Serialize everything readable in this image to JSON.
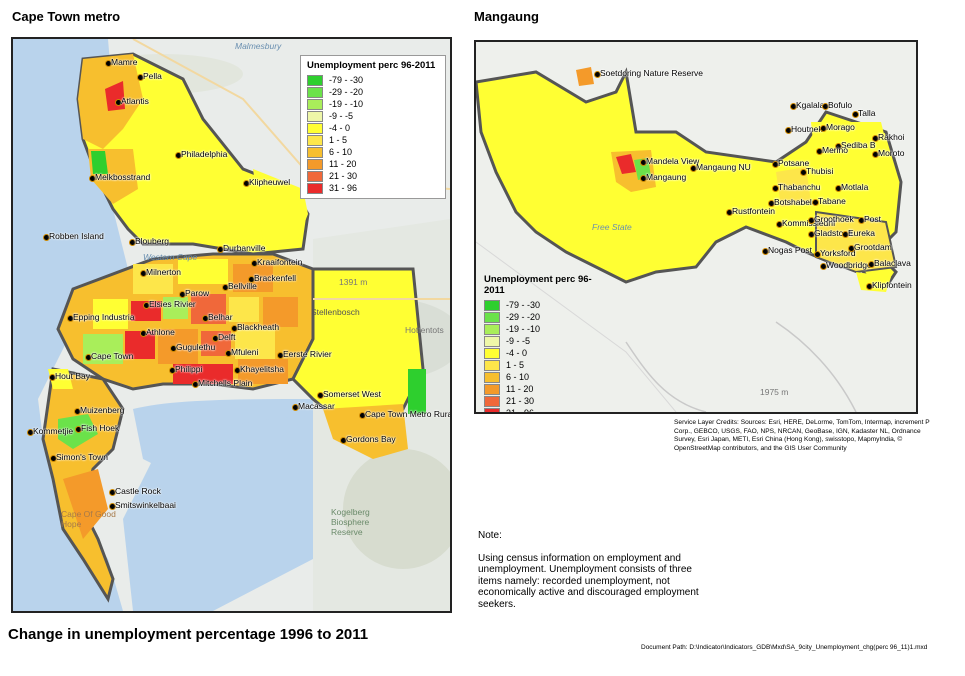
{
  "titles": {
    "left": "Cape Town metro",
    "right": "Mangaung",
    "main": "Change in unemployment percentage 1996 to 2011"
  },
  "legend": {
    "title": "Unemployment perc 96-2011",
    "classes": [
      {
        "label": "-79 - -30",
        "color": "#2ecf2e"
      },
      {
        "label": "-29 - -20",
        "color": "#6be24a"
      },
      {
        "label": "-19 - -10",
        "color": "#a9ee5a"
      },
      {
        "label": "-9 - -5",
        "color": "#eef7a8"
      },
      {
        "label": "-4 - 0",
        "color": "#ffff33"
      },
      {
        "label": "1 - 5",
        "color": "#fde64a"
      },
      {
        "label": "6 - 10",
        "color": "#f7bf2e"
      },
      {
        "label": "11 - 20",
        "color": "#f49a2a"
      },
      {
        "label": "21 - 30",
        "color": "#f0683a"
      },
      {
        "label": "31 - 96",
        "color": "#ea2b2b"
      }
    ]
  },
  "cape_town_places": [
    "Mamre",
    "Pella",
    "Atlantis",
    "Philadelphia",
    "Melkbosstrand",
    "Klipheuwel",
    "Robben Island",
    "Blouberg",
    "Durbanville",
    "Kraaifontein",
    "Milnerton",
    "Brackenfell",
    "Parow",
    "Bellville",
    "Elsies Rivier",
    "Epping Industria",
    "Belhar",
    "Blackheath",
    "Athlone",
    "Delft",
    "Gugulethu",
    "Mfuleni",
    "Eerste Rivier",
    "Cape Town",
    "Philippi",
    "Khayelitsha",
    "Hout Bay",
    "Mitchells Plain",
    "Macassar",
    "Somerset West",
    "Muizenberg",
    "Cape Town Metro Rural",
    "Kommetjie",
    "Fish Hoek",
    "Gordons Bay",
    "Simon's Town",
    "Castle Rock",
    "Smitswinkelbaai"
  ],
  "cape_town_map_labels": [
    "Malmesbury",
    "Western Cape",
    "Stellenbosch",
    "1391 m",
    "Hottentots",
    "Kogelberg Biosphere Reserve",
    "Cape Of Good Hope"
  ],
  "mangaung_places": [
    "Soetdoring Nature Reserve",
    "Kgalala",
    "Bofulo",
    "Talla",
    "Houtnek",
    "Morago",
    "Rakhoi",
    "Sediba B",
    "Merino",
    "Moroto",
    "Mandela View",
    "Mangaung NU",
    "Mangaung",
    "Potsane",
    "Thubisi",
    "Motlala",
    "Thabanchu",
    "Botshabelo",
    "Tabane",
    "Rustfontein",
    "Kommissiedrif",
    "Groothoek",
    "Post",
    "Gladstone",
    "Eureka",
    "Nogas Post",
    "Yorksford",
    "Grootdam",
    "Woodbridge",
    "Balaclava",
    "Klipfontein"
  ],
  "mangaung_map_labels": [
    "Free State",
    "1975 m"
  ],
  "credits": "Service Layer Credits: Sources: Esri, HERE, DeLorme, TomTom, Intermap, increment P Corp., GEBCO, USGS, FAO, NPS, NRCAN, GeoBase, IGN, Kadaster NL, Ordnance Survey, Esri Japan, METI, Esri China (Hong Kong), swisstopo, MapmyIndia, © OpenStreetMap contributors, and the GIS User Community",
  "note": {
    "heading": "Note:",
    "body": "Using census information on employment and unemployment. Unemployment consists of three items namely: recorded unemployment, not economically active and discouraged employment seekers."
  },
  "document_path": "Document Path: D:\\Indicator\\Indicators_GDB\\Mxd\\SA_9city_Unemployment_chg(perc 96_11)1.mxd"
}
